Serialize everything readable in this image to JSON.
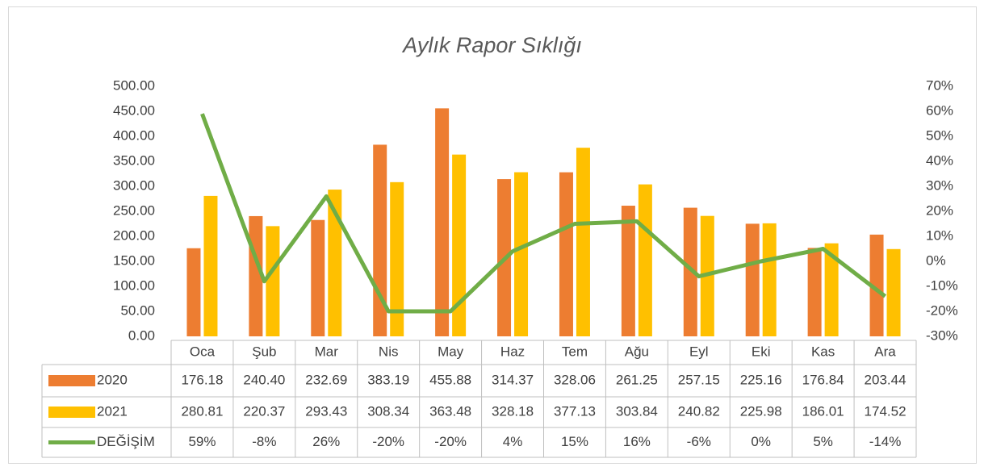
{
  "chart_data": {
    "type": "bar",
    "title": "Aylık Rapor Sıklığı",
    "categories": [
      "Oca",
      "Şub",
      "Mar",
      "Nis",
      "May",
      "Haz",
      "Tem",
      "Ağu",
      "Eyl",
      "Eki",
      "Kas",
      "Ara"
    ],
    "series": [
      {
        "name": "2020",
        "color": "#ed7d31",
        "type": "bar",
        "values": [
          176.18,
          240.4,
          232.69,
          383.19,
          455.88,
          314.37,
          328.06,
          261.25,
          257.15,
          225.16,
          176.84,
          203.44
        ],
        "value_labels": [
          "176.18",
          "240.40",
          "232.69",
          "383.19",
          "455.88",
          "314.37",
          "328.06",
          "261.25",
          "257.15",
          "225.16",
          "176.84",
          "203.44"
        ]
      },
      {
        "name": "2021",
        "color": "#ffc000",
        "type": "bar",
        "values": [
          280.81,
          220.37,
          293.43,
          308.34,
          363.48,
          328.18,
          377.13,
          303.84,
          240.82,
          225.98,
          186.01,
          174.52
        ],
        "value_labels": [
          "280.81",
          "220.37",
          "293.43",
          "308.34",
          "363.48",
          "328.18",
          "377.13",
          "303.84",
          "240.82",
          "225.98",
          "186.01",
          "174.52"
        ]
      },
      {
        "name": "DEĞİŞİM",
        "color": "#70ad47",
        "type": "line",
        "axis": "y2",
        "values": [
          59,
          -8,
          26,
          -20,
          -20,
          4,
          15,
          16,
          -6,
          0,
          5,
          -14
        ],
        "value_labels": [
          "59%",
          "-8%",
          "26%",
          "-20%",
          "-20%",
          "4%",
          "15%",
          "16%",
          "-6%",
          "0%",
          "5%",
          "-14%"
        ]
      }
    ],
    "ylim": [
      0,
      500
    ],
    "yticks": [
      {
        "value": 0,
        "label": "0.00"
      },
      {
        "value": 50,
        "label": "50.00"
      },
      {
        "value": 100,
        "label": "100.00"
      },
      {
        "value": 150,
        "label": "150.00"
      },
      {
        "value": 200,
        "label": "200.00"
      },
      {
        "value": 250,
        "label": "250.00"
      },
      {
        "value": 300,
        "label": "300.00"
      },
      {
        "value": 350,
        "label": "350.00"
      },
      {
        "value": 400,
        "label": "400.00"
      },
      {
        "value": 450,
        "label": "450.00"
      },
      {
        "value": 500,
        "label": "500.00"
      }
    ],
    "y2lim": [
      -30,
      70
    ],
    "y2ticks": [
      {
        "value": -30,
        "label": "-30%"
      },
      {
        "value": -20,
        "label": "-20%"
      },
      {
        "value": -10,
        "label": "-10%"
      },
      {
        "value": 0,
        "label": "0%"
      },
      {
        "value": 10,
        "label": "10%"
      },
      {
        "value": 20,
        "label": "20%"
      },
      {
        "value": 30,
        "label": "30%"
      },
      {
        "value": 40,
        "label": "40%"
      },
      {
        "value": 50,
        "label": "50%"
      },
      {
        "value": 60,
        "label": "60%"
      },
      {
        "value": 70,
        "label": "70%"
      }
    ],
    "grid": false
  }
}
